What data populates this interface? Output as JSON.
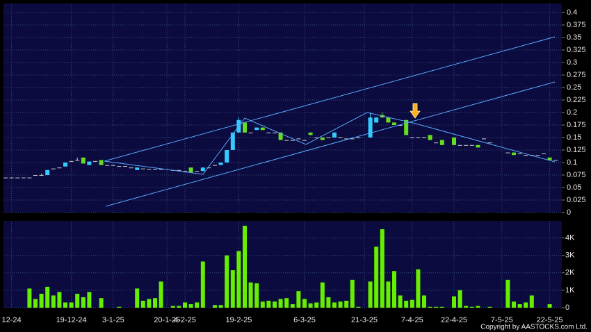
{
  "chart_data": {
    "type": "candlestick",
    "categories": [
      null,
      "12-24",
      null,
      null,
      null,
      null,
      null,
      null,
      null,
      null,
      null,
      "19-12-24",
      null,
      null,
      null,
      null,
      null,
      null,
      "3-1-25",
      null,
      null,
      null,
      null,
      null,
      null,
      null,
      null,
      "20-1-25",
      null,
      null,
      "4-2-25",
      null,
      null,
      null,
      null,
      null,
      null,
      null,
      null,
      "19-2-25",
      null,
      null,
      null,
      null,
      null,
      null,
      null,
      null,
      null,
      null,
      "6-3-25",
      null,
      null,
      null,
      null,
      null,
      null,
      null,
      null,
      null,
      "21-3-25",
      null,
      null,
      null,
      null,
      null,
      null,
      null,
      "7-4-25",
      null,
      null,
      null,
      null,
      null,
      null,
      "22-4-25",
      null,
      null,
      null,
      null,
      null,
      null,
      null,
      "7-5-25",
      null,
      null,
      null,
      null,
      null,
      null,
      null,
      "22-5-25",
      null
    ],
    "open": [
      0.07,
      0.07,
      0.07,
      0.07,
      0.07,
      0.075,
      0.075,
      0.075,
      0.088,
      0.09,
      0.092,
      0.103,
      0.105,
      0.11,
      0.095,
      0.103,
      0.105,
      0.095,
      0.095,
      0.093,
      0.093,
      0.09,
      0.085,
      0.088,
      0.087,
      0.087,
      0.087,
      null,
      0.085,
      0.085,
      0.083,
      0.09,
      0.083,
      0.083,
      0.09,
      0.095,
      0.095,
      0.1,
      0.125,
      0.16,
      0.18,
      0.16,
      0.165,
      0.17,
      0.16,
      0.16,
      0.16,
      0.145,
      0.145,
      0.148,
      0.145,
      0.16,
      0.15,
      0.15,
      0.15,
      0.15,
      0.15,
      0.148,
      0.148,
      0.15,
      null,
      0.15,
      0.18,
      0.195,
      0.19,
      0.18,
      0.175,
      0.185,
      0.15,
      0.15,
      0.15,
      0.155,
      0.14,
      0.145,
      null,
      0.15,
      0.135,
      0.135,
      0.135,
      0.135,
      0.148,
      0.14,
      null,
      null,
      0.12,
      0.12,
      0.118,
      0.115,
      0.115,
      0.115,
      0.118,
      0.11,
      0.105
    ],
    "high": [
      0.07,
      0.07,
      0.07,
      0.07,
      0.07,
      0.075,
      0.078,
      0.085,
      0.088,
      0.09,
      0.1,
      0.103,
      0.11,
      0.11,
      0.102,
      0.103,
      0.105,
      0.095,
      0.095,
      0.093,
      0.093,
      0.09,
      0.09,
      0.088,
      0.087,
      0.087,
      0.087,
      null,
      0.085,
      0.085,
      0.083,
      0.09,
      0.083,
      0.09,
      0.09,
      0.095,
      0.1,
      0.125,
      0.16,
      0.19,
      0.18,
      0.16,
      0.17,
      0.17,
      0.16,
      0.16,
      0.16,
      0.145,
      0.145,
      0.148,
      0.145,
      0.16,
      0.15,
      0.15,
      0.15,
      0.16,
      0.15,
      0.148,
      0.148,
      0.15,
      null,
      0.2,
      0.19,
      0.2,
      0.19,
      0.18,
      0.175,
      0.185,
      0.15,
      0.15,
      0.15,
      0.155,
      0.14,
      0.145,
      null,
      0.15,
      0.135,
      0.135,
      0.135,
      0.135,
      0.148,
      0.14,
      null,
      null,
      0.12,
      0.12,
      0.118,
      0.115,
      0.115,
      0.115,
      0.118,
      0.11,
      0.105
    ],
    "low": [
      0.07,
      0.07,
      0.07,
      0.07,
      0.07,
      0.075,
      0.075,
      0.075,
      0.088,
      0.09,
      0.092,
      0.103,
      0.105,
      0.098,
      0.095,
      0.103,
      0.095,
      0.095,
      0.095,
      0.093,
      0.093,
      0.09,
      0.085,
      0.088,
      0.087,
      0.087,
      0.087,
      null,
      0.085,
      0.085,
      0.083,
      0.08,
      0.083,
      0.083,
      0.09,
      0.095,
      0.095,
      0.1,
      0.125,
      0.16,
      0.16,
      0.16,
      0.165,
      0.165,
      0.16,
      0.16,
      0.145,
      0.145,
      0.145,
      0.148,
      0.145,
      0.155,
      0.15,
      0.145,
      0.15,
      0.15,
      0.15,
      0.148,
      0.148,
      0.15,
      null,
      0.15,
      0.18,
      0.19,
      0.18,
      0.175,
      0.175,
      0.155,
      0.15,
      0.15,
      0.15,
      0.145,
      0.14,
      0.135,
      null,
      0.135,
      0.135,
      0.135,
      0.135,
      0.13,
      0.148,
      0.14,
      null,
      null,
      0.12,
      0.115,
      0.118,
      0.115,
      0.115,
      0.115,
      0.118,
      0.105,
      0.105
    ],
    "close": [
      0.07,
      0.07,
      0.07,
      0.07,
      0.07,
      0.075,
      0.075,
      0.085,
      0.088,
      0.09,
      0.1,
      0.103,
      0.105,
      0.098,
      0.102,
      0.103,
      0.095,
      0.095,
      0.095,
      0.093,
      0.093,
      0.09,
      0.09,
      0.088,
      0.087,
      0.087,
      0.087,
      null,
      0.085,
      0.085,
      0.083,
      0.08,
      0.083,
      0.09,
      0.09,
      0.095,
      0.1,
      0.125,
      0.16,
      0.185,
      0.16,
      0.16,
      0.17,
      0.165,
      0.16,
      0.16,
      0.145,
      0.145,
      0.145,
      0.148,
      0.145,
      0.155,
      0.15,
      0.145,
      0.15,
      0.16,
      0.15,
      0.148,
      0.148,
      0.15,
      null,
      0.19,
      0.19,
      0.19,
      0.18,
      0.175,
      0.175,
      0.155,
      0.15,
      0.15,
      0.15,
      0.145,
      0.14,
      0.135,
      null,
      0.135,
      0.135,
      0.135,
      0.135,
      0.13,
      0.148,
      0.14,
      null,
      null,
      0.12,
      0.115,
      0.118,
      0.115,
      0.115,
      0.115,
      0.118,
      0.105,
      0.105
    ],
    "up_color": "#33ccff",
    "down_color": "#66dd22",
    "flat_color": "#d0d0d0",
    "ylim": [
      0,
      0.4
    ],
    "yticks": [
      0,
      0.025,
      0.05,
      0.075,
      0.1,
      0.125,
      0.15,
      0.175,
      0.2,
      0.225,
      0.25,
      0.275,
      0.3,
      0.325,
      0.35,
      0.375,
      0.4
    ],
    "grid": true,
    "volume": {
      "type": "bar",
      "values": [
        null,
        null,
        null,
        null,
        1100,
        500,
        800,
        1200,
        700,
        900,
        300,
        300,
        800,
        600,
        900,
        null,
        550,
        null,
        null,
        50,
        null,
        null,
        1100,
        400,
        500,
        550,
        1500,
        null,
        100,
        100,
        300,
        200,
        300,
        2650,
        null,
        150,
        150,
        3000,
        2150,
        3250,
        4700,
        1450,
        1400,
        350,
        400,
        350,
        500,
        550,
        200,
        950,
        500,
        250,
        300,
        1450,
        600,
        300,
        350,
        400,
        1600,
        50,
        null,
        1500,
        3500,
        4500,
        1500,
        2100,
        700,
        400,
        450,
        2200,
        700,
        50,
        50,
        50,
        null,
        650,
        1000,
        100,
        50,
        100,
        null,
        50,
        null,
        null,
        1600,
        350,
        200,
        300,
        700,
        null,
        null,
        200,
        null
      ],
      "color": "#66ee00",
      "ylim": [
        0,
        4900
      ],
      "yticks": [
        0,
        {
          "value": 1000,
          "label": "1K"
        },
        {
          "value": 2000,
          "label": "2K"
        },
        {
          "value": 3000,
          "label": "3K"
        },
        {
          "value": 4000,
          "label": "4K"
        }
      ]
    },
    "copyright": "Copyright by AASTOCKS.com Ltd."
  }
}
